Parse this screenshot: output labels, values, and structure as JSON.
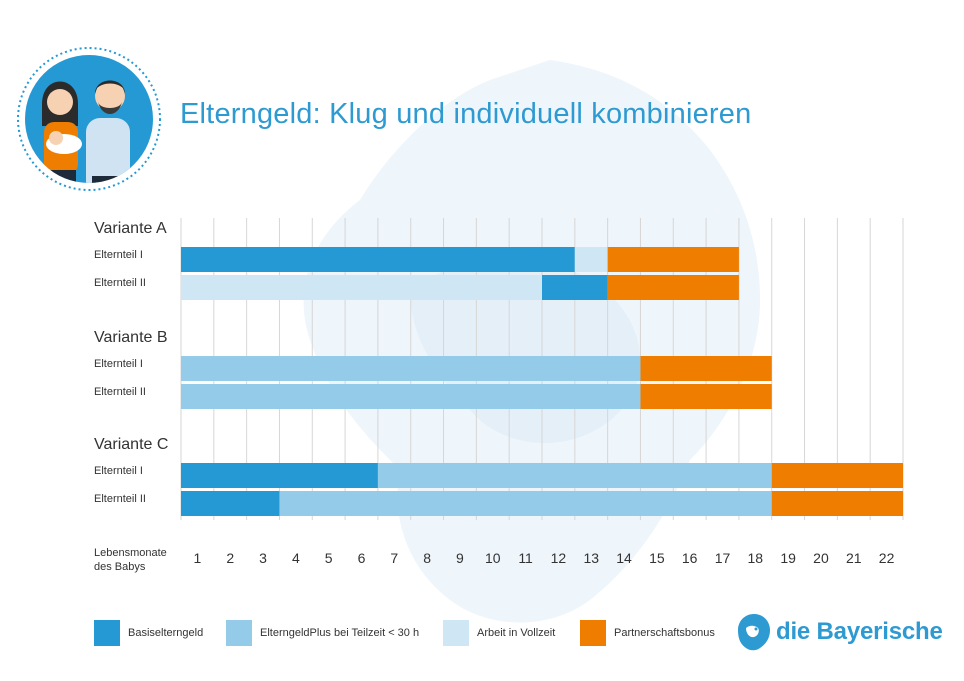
{
  "title": "Elterngeld: Klug und individuell kombinieren",
  "brand": "die Bayerische",
  "colors": {
    "basis": "#2599d4",
    "plus": "#93cbe9",
    "arbeit": "#cfe6f4",
    "bonus": "#ef7d00",
    "title": "#2e9ad2",
    "grid": "#d6d6d6"
  },
  "legend": [
    {
      "key": "basis",
      "label": "Basiselterngeld"
    },
    {
      "key": "plus",
      "label": "ElterngeldPlus bei Teilzeit < 30 h"
    },
    {
      "key": "arbeit",
      "label": "Arbeit in Vollzeit"
    },
    {
      "key": "bonus",
      "label": "Partnerschaftsbonus"
    }
  ],
  "chart_data": {
    "type": "bar",
    "orientation": "horizontal-stacked",
    "xlabel": "Lebensmonate des Babys",
    "x_ticks": [
      1,
      2,
      3,
      4,
      5,
      6,
      7,
      8,
      9,
      10,
      11,
      12,
      13,
      14,
      15,
      16,
      17,
      18,
      19,
      20,
      21,
      22
    ],
    "xlim": [
      0,
      22
    ],
    "grid": true,
    "groups": [
      {
        "name": "Variante A",
        "rows": [
          {
            "label": "Elternteil I",
            "segments": [
              {
                "key": "basis",
                "from": 0,
                "to": 12
              },
              {
                "key": "arbeit",
                "from": 12,
                "to": 13
              },
              {
                "key": "bonus",
                "from": 13,
                "to": 17
              }
            ]
          },
          {
            "label": "Elternteil II",
            "segments": [
              {
                "key": "arbeit",
                "from": 0,
                "to": 11
              },
              {
                "key": "basis",
                "from": 11,
                "to": 13
              },
              {
                "key": "bonus",
                "from": 13,
                "to": 17
              }
            ]
          }
        ]
      },
      {
        "name": "Variante B",
        "rows": [
          {
            "label": "Elternteil I",
            "segments": [
              {
                "key": "plus",
                "from": 0,
                "to": 14
              },
              {
                "key": "bonus",
                "from": 14,
                "to": 18
              }
            ]
          },
          {
            "label": "Elternteil II",
            "segments": [
              {
                "key": "plus",
                "from": 0,
                "to": 14
              },
              {
                "key": "bonus",
                "from": 14,
                "to": 18
              }
            ]
          }
        ]
      },
      {
        "name": "Variante C",
        "rows": [
          {
            "label": "Elternteil I",
            "segments": [
              {
                "key": "basis",
                "from": 0,
                "to": 6
              },
              {
                "key": "plus",
                "from": 6,
                "to": 18
              },
              {
                "key": "bonus",
                "from": 18,
                "to": 22
              }
            ]
          },
          {
            "label": "Elternteil II",
            "segments": [
              {
                "key": "basis",
                "from": 0,
                "to": 3
              },
              {
                "key": "plus",
                "from": 3,
                "to": 18
              },
              {
                "key": "bonus",
                "from": 18,
                "to": 22
              }
            ]
          }
        ]
      }
    ]
  }
}
